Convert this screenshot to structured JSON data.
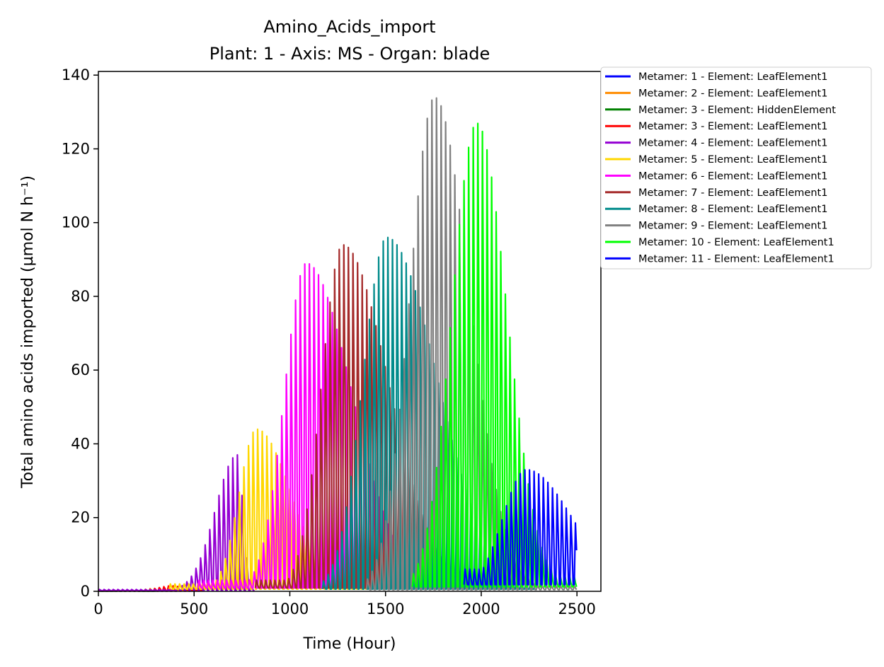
{
  "chart_data": {
    "type": "line",
    "title": "Amino_Acids_import",
    "subtitle": "Plant: 1 - Axis: MS - Organ: blade",
    "xlabel": "Time (Hour)",
    "ylabel": "Total amino acids imported (µmol N h⁻¹)",
    "xlim": [
      0,
      2625
    ],
    "ylim": [
      0,
      141
    ],
    "xticks": [
      0,
      500,
      1000,
      1500,
      2000,
      2500
    ],
    "yticks": [
      0,
      20,
      40,
      60,
      80,
      100,
      120,
      140
    ],
    "grid": false,
    "legend_position": "outside-top-right",
    "series": [
      {
        "name": "Metamer: 1 - Element: LeafElement1",
        "color": "#0000ff",
        "start": 0,
        "end": 420,
        "peak_t": 200,
        "peak": 0.4,
        "rise": 120,
        "fall": 150,
        "floor": 0.2
      },
      {
        "name": "Metamer: 2 - Element: LeafElement1",
        "color": "#ff8c00",
        "start": 0,
        "end": 480,
        "peak_t": 300,
        "peak": 0.8,
        "rise": 150,
        "fall": 120,
        "floor": 0.2
      },
      {
        "name": "Metamer: 3 - Element: HiddenElement",
        "color": "#008000",
        "start": 0,
        "end": 300,
        "peak_t": 150,
        "peak": 0.3,
        "rise": 100,
        "fall": 100,
        "floor": 0.1
      },
      {
        "name": "Metamer: 3 - Element: LeafElement1",
        "color": "#ff0000",
        "start": 0,
        "end": 550,
        "peak_t": 380,
        "peak": 1.5,
        "rise": 160,
        "fall": 120,
        "floor": 0.3
      },
      {
        "name": "Metamer: 4 - Element: LeafElement1",
        "color": "#9400d3",
        "start": 0,
        "end": 820,
        "peak_t": 720,
        "peak": 37,
        "rise": 240,
        "fall": 60,
        "floor": 0.5
      },
      {
        "name": "Metamer: 5 - Element: LeafElement1",
        "color": "#ffd700",
        "start": 370,
        "end": 1430,
        "peak_t": 820,
        "peak": 44,
        "rise": 190,
        "fall": 380,
        "floor": 2
      },
      {
        "name": "Metamer: 6 - Element: LeafElement1",
        "color": "#ff00ff",
        "start": 520,
        "end": 1760,
        "peak_t": 1080,
        "peak": 89,
        "rise": 240,
        "fall": 500,
        "floor": 3
      },
      {
        "name": "Metamer: 7 - Element: LeafElement1",
        "color": "#a52a2a",
        "start": 820,
        "end": 1950,
        "peak_t": 1270,
        "peak": 94,
        "rise": 230,
        "fall": 500,
        "floor": 3
      },
      {
        "name": "Metamer: 8 - Element: LeafElement1",
        "color": "#008b8b",
        "start": 1170,
        "end": 2280,
        "peak_t": 1500,
        "peak": 96,
        "rise": 260,
        "fall": 550,
        "floor": 2
      },
      {
        "name": "Metamer: 9 - Element: LeafElement1",
        "color": "#808080",
        "start": 1400,
        "end": 2500,
        "peak_t": 1750,
        "peak": 134,
        "rise": 270,
        "fall": 380,
        "floor": 1.5
      },
      {
        "name": "Metamer: 10 - Element: LeafElement1",
        "color": "#00ff00",
        "start": 1640,
        "end": 2500,
        "peak_t": 1970,
        "peak": 127,
        "rise": 270,
        "fall": 330,
        "floor": 4
      },
      {
        "name": "Metamer: 11 - Element: LeafElement1",
        "color": "#0000ff",
        "start": 1910,
        "end": 2500,
        "peak_t": 2230,
        "peak": 33,
        "rise": 260,
        "fall": 500,
        "floor": 6
      }
    ]
  }
}
